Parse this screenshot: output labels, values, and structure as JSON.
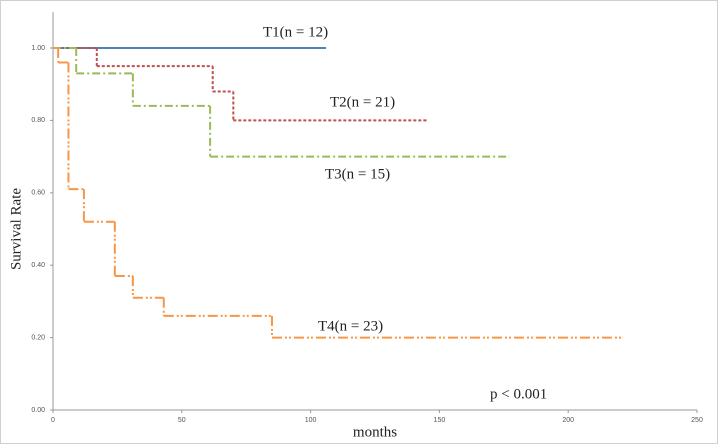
{
  "chart_data": {
    "type": "step",
    "ylabel": "Survival Rate",
    "xlabel": "months",
    "annotation": "p < 0.001",
    "xlim": [
      0,
      250
    ],
    "xticks": [
      0,
      50,
      100,
      150,
      200,
      250
    ],
    "ylim": [
      0,
      1
    ],
    "yticks": [
      {
        "value": 0,
        "label": "0.00"
      },
      {
        "value": 0.2,
        "label": "0.20"
      },
      {
        "value": 0.4,
        "label": "0.40"
      },
      {
        "value": 0.6,
        "label": "0.60"
      },
      {
        "value": 0.8,
        "label": "0.80"
      },
      {
        "value": 1,
        "label": "1.00"
      }
    ],
    "series": [
      {
        "name": "T1(n = 12)",
        "color": "#4f81bd",
        "x": [
          0,
          106
        ],
        "values": [
          1,
          1
        ]
      },
      {
        "name": "T2(n = 21)",
        "color": "#c0504d",
        "x": [
          0,
          17,
          62,
          70,
          145
        ],
        "values": [
          1,
          0.95,
          0.88,
          0.8,
          0.8
        ]
      },
      {
        "name": "T3(n = 15)",
        "color": "#9bbb59",
        "x": [
          0,
          9,
          31,
          61,
          177
        ],
        "values": [
          1,
          0.93,
          0.84,
          0.7,
          0.7
        ]
      },
      {
        "name": "T4(n = 23)",
        "color": "#f79646",
        "x": [
          0,
          2,
          6,
          12,
          24,
          31,
          43,
          85,
          221
        ],
        "values": [
          1,
          0.96,
          0.61,
          0.52,
          0.37,
          0.31,
          0.26,
          0.2,
          0.2
        ]
      }
    ]
  }
}
